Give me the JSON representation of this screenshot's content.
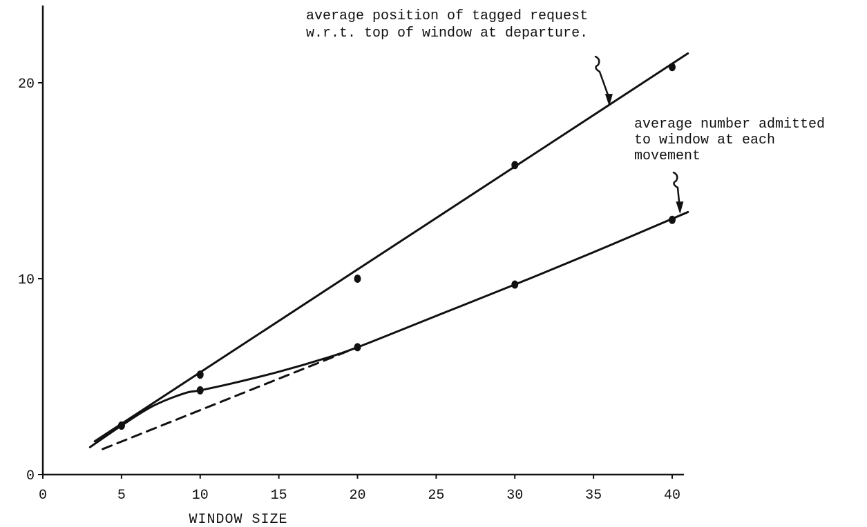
{
  "chart_data": {
    "type": "line",
    "title": "",
    "xlabel": "WINDOW SIZE",
    "ylabel": "",
    "xlim": [
      0,
      40
    ],
    "ylim": [
      0,
      20
    ],
    "xticks": [
      0,
      5,
      10,
      15,
      20,
      25,
      30,
      35,
      40
    ],
    "yticks": [
      0,
      10,
      20
    ],
    "grid": false,
    "series": [
      {
        "key": "position",
        "points": [
          [
            5,
            2.5
          ],
          [
            10,
            5.1
          ],
          [
            20,
            10.0
          ],
          [
            30,
            15.8
          ],
          [
            40,
            20.8
          ]
        ],
        "fit": [
          [
            3.3,
            1.7
          ],
          [
            41.0,
            21.5
          ]
        ],
        "style": "solid",
        "color": "#111111"
      },
      {
        "key": "admitted",
        "points": [
          [
            5,
            2.5
          ],
          [
            10,
            4.3
          ],
          [
            20,
            6.5
          ],
          [
            30,
            9.7
          ],
          [
            40,
            13.0
          ]
        ],
        "curve": [
          [
            3.0,
            1.4
          ],
          [
            5,
            2.5
          ],
          [
            7,
            3.5
          ],
          [
            9,
            4.15
          ],
          [
            10,
            4.3
          ],
          [
            12,
            4.65
          ],
          [
            15,
            5.25
          ],
          [
            18,
            5.95
          ],
          [
            20,
            6.5
          ],
          [
            25,
            8.1
          ],
          [
            30,
            9.7
          ],
          [
            35,
            11.35
          ],
          [
            41.0,
            13.4
          ]
        ],
        "style": "solid",
        "color": "#111111"
      },
      {
        "key": "reference",
        "curve": [
          [
            3.8,
            1.3
          ],
          [
            20,
            6.5
          ]
        ],
        "style": "dashed",
        "color": "#111111"
      }
    ],
    "annotations": [
      {
        "key": "position",
        "lines": [
          "average position of tagged request",
          "w.r.t. top of window at departure."
        ],
        "arrow_to": [
          36,
          18.8
        ]
      },
      {
        "key": "admitted",
        "lines": [
          "average number admitted",
          "to window at each",
          "movement"
        ],
        "arrow_to": [
          40.5,
          13.3
        ]
      }
    ]
  }
}
